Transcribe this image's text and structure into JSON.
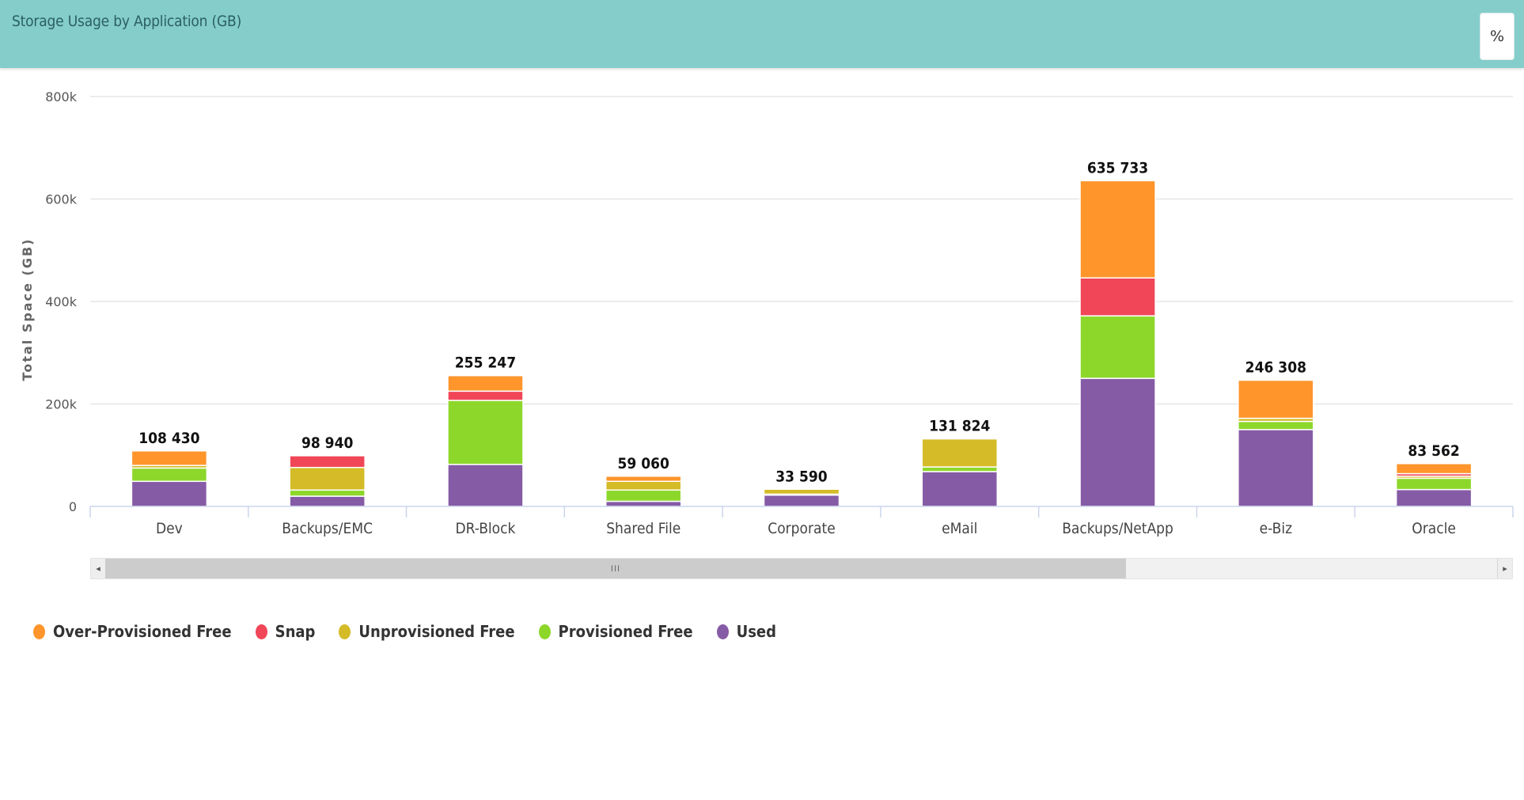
{
  "header": {
    "title": "Storage Usage by Application (GB)",
    "percent_button": "%"
  },
  "scrollbar": {
    "left_arrow": "◂",
    "right_arrow": "▸",
    "thumb_grip": "III"
  },
  "chart_data": {
    "type": "bar",
    "stacked": true,
    "title": "Storage Usage by Application (GB)",
    "ylabel": "Total Space (GB)",
    "xlabel": "",
    "ylim": [
      0,
      800000
    ],
    "yticks": [
      {
        "value": 0,
        "label": "0"
      },
      {
        "value": 200000,
        "label": "200k"
      },
      {
        "value": 400000,
        "label": "400k"
      },
      {
        "value": 600000,
        "label": "600k"
      },
      {
        "value": 800000,
        "label": "800k"
      }
    ],
    "grid": true,
    "legend_position": "bottom-left",
    "categories": [
      "Dev",
      "Backups/EMC",
      "DR-Block",
      "Shared File",
      "Corporate",
      "eMail",
      "Backups/NetApp",
      "e-Biz",
      "Oracle"
    ],
    "totals": [
      108430,
      98940,
      255247,
      59060,
      33590,
      131824,
      635733,
      246308,
      83562
    ],
    "total_labels": [
      "108 430",
      "98 940",
      "255 247",
      "59 060",
      "33 590",
      "131 824",
      "635 733",
      "246 308",
      "83 562"
    ],
    "series": [
      {
        "name": "Used",
        "color": "#865ba6",
        "values": [
          49000,
          20000,
          82000,
          10000,
          22000,
          68000,
          250000,
          150000,
          33000
        ]
      },
      {
        "name": "Provisioned Free",
        "color": "#8dd72b",
        "values": [
          26000,
          12000,
          125000,
          22000,
          2000,
          9000,
          122000,
          16000,
          22000
        ]
      },
      {
        "name": "Unprovisioned Free",
        "color": "#d4bb27",
        "values": [
          5000,
          44000,
          0,
          17000,
          9590,
          54824,
          0,
          6000,
          4000
        ]
      },
      {
        "name": "Snap",
        "color": "#f04658",
        "values": [
          0,
          22940,
          18000,
          0,
          0,
          0,
          74000,
          0,
          5000
        ]
      },
      {
        "name": "Over-Provisioned Free",
        "color": "#ff952b",
        "values": [
          28430,
          0,
          30247,
          10060,
          0,
          0,
          189733,
          74308,
          19562
        ]
      }
    ],
    "legend": [
      "Over-Provisioned Free",
      "Snap",
      "Unprovisioned Free",
      "Provisioned Free",
      "Used"
    ]
  }
}
